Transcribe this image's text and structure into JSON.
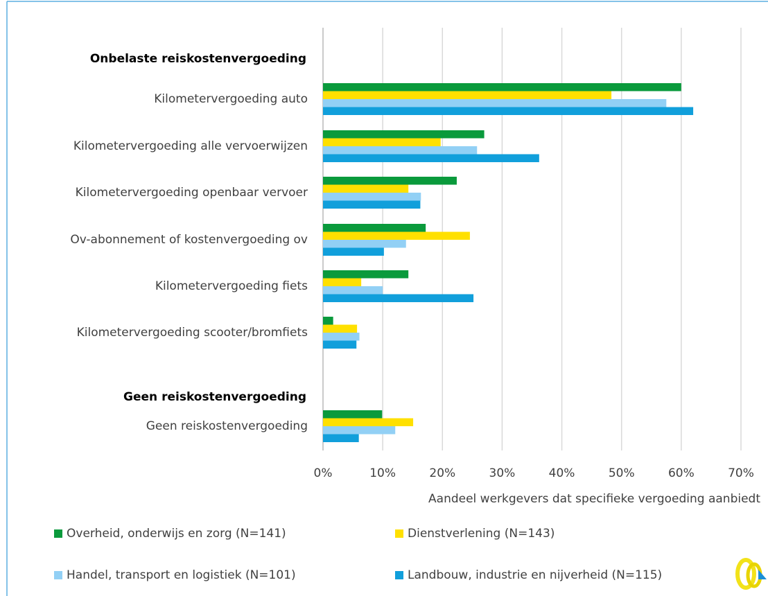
{
  "chart_data": {
    "type": "bar",
    "orientation": "horizontal",
    "groups": [
      {
        "label": "Onbelaste reiskostenvergoeding",
        "categories": [
          "Kilometervergoeding auto",
          "Kilometervergoeding alle vervoerwijzen",
          "Kilometervergoeding openbaar vervoer",
          "Ov-abonnement of kostenvergoeding ov",
          "Kilometervergoeding fiets",
          "Kilometervergoeding scooter/bromfiets"
        ]
      },
      {
        "label": "Geen reiskostenvergoeding",
        "categories": [
          "Geen reiskostenvergoeding"
        ]
      }
    ],
    "series": [
      {
        "name": "Overheid, onderwijs en zorg (N=141)",
        "color": "#0a9a3c",
        "values": [
          60,
          27,
          22.4,
          17.2,
          14.3,
          1.7,
          9.9
        ]
      },
      {
        "name": "Dienstverlening (N=143)",
        "color": "#ffe000",
        "values": [
          48.3,
          19.7,
          14.3,
          24.6,
          6.4,
          5.7,
          15.1
        ]
      },
      {
        "name": "Handel, transport en logistiek (N=101)",
        "color": "#92d0f5",
        "values": [
          57.5,
          25.8,
          16.4,
          13.9,
          10.0,
          6.1,
          12.1
        ]
      },
      {
        "name": "Landbouw, industrie en nijverheid (N=115)",
        "color": "#119fdb",
        "values": [
          62,
          36.2,
          16.3,
          10.2,
          25.2,
          5.6,
          6.0
        ]
      }
    ],
    "x_label": "Aandeel werkgevers dat specifieke vergoeding aanbiedt",
    "xlim": [
      0,
      70
    ],
    "xticks": [
      {
        "value": 0,
        "label": "0%"
      },
      {
        "value": 10,
        "label": "10%"
      },
      {
        "value": 20,
        "label": "20%"
      },
      {
        "value": 30,
        "label": "30%"
      },
      {
        "value": 40,
        "label": "40%"
      },
      {
        "value": 50,
        "label": "50%"
      },
      {
        "value": 60,
        "label": "60%"
      },
      {
        "value": 70,
        "label": "70%"
      }
    ],
    "grid": true
  }
}
